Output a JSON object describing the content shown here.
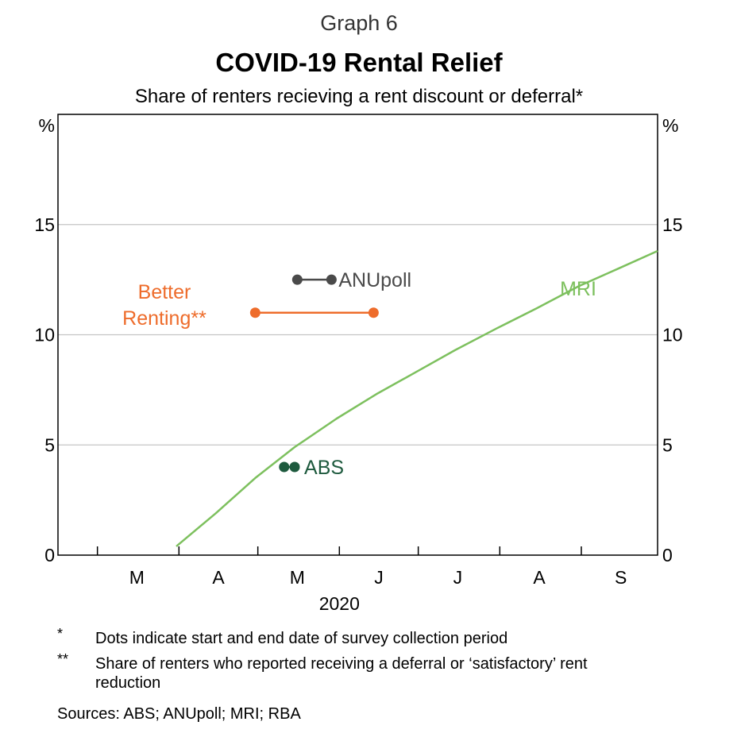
{
  "header": {
    "graph_label": "Graph 6",
    "title": "COVID-19 Rental Relief",
    "subtitle": "Share of renters recieving a rent discount or deferral*"
  },
  "chart_data": {
    "type": "line",
    "x_axis": {
      "month_labels": [
        "M",
        "A",
        "M",
        "J",
        "J",
        "A",
        "S"
      ],
      "year_label": "2020",
      "range": [
        "2020-02-15",
        "2020-09-30"
      ]
    },
    "y_axis": {
      "unit_left": "%",
      "unit_right": "%",
      "range": [
        0,
        20
      ],
      "ticks": [
        0,
        5,
        10,
        15
      ],
      "tick_labels": [
        "0",
        "5",
        "10",
        "15"
      ],
      "gridlines": [
        5,
        10,
        15
      ]
    },
    "colors": {
      "mri": "#7dc05e",
      "better_renting": "#ee6c2b",
      "anupoll": "#4a4a4a",
      "abs": "#1e5a3e"
    },
    "series": [
      {
        "name": "MRI",
        "style": "line",
        "points": [
          {
            "date": "2020-03-31",
            "value": 0.4
          },
          {
            "date": "2020-04-15",
            "value": 1.9
          },
          {
            "date": "2020-04-30",
            "value": 3.5
          },
          {
            "date": "2020-05-15",
            "value": 4.9
          },
          {
            "date": "2020-05-31",
            "value": 6.2
          },
          {
            "date": "2020-06-15",
            "value": 7.3
          },
          {
            "date": "2020-06-30",
            "value": 8.3
          },
          {
            "date": "2020-07-15",
            "value": 9.3
          },
          {
            "date": "2020-07-31",
            "value": 10.3
          },
          {
            "date": "2020-08-15",
            "value": 11.2
          },
          {
            "date": "2020-08-31",
            "value": 12.2
          },
          {
            "date": "2020-09-15",
            "value": 13.0
          },
          {
            "date": "2020-09-30",
            "value": 13.8
          }
        ]
      },
      {
        "name": "ANUpoll",
        "style": "range",
        "start": "2020-05-16",
        "end": "2020-05-29",
        "value": 12.5
      },
      {
        "name": "Better Renting**",
        "label_lines": [
          "Better",
          "Renting**"
        ],
        "style": "range",
        "start": "2020-04-30",
        "end": "2020-06-14",
        "value": 11.0
      },
      {
        "name": "ABS",
        "style": "range",
        "start": "2020-05-11",
        "end": "2020-05-15",
        "value": 4.0
      }
    ]
  },
  "footnotes": [
    {
      "marker": "*",
      "text": "Dots indicate start and end date of survey collection period"
    },
    {
      "marker": "**",
      "text": "Share of renters who reported receiving a deferral or ‘satisfactory’ rent reduction"
    }
  ],
  "sources": "Sources: ABS; ANUpoll; MRI; RBA"
}
